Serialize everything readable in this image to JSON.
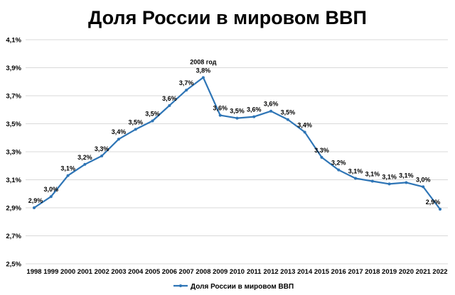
{
  "chart_data": {
    "type": "line",
    "title": "Доля России в мировом ВВП",
    "xlabel": "",
    "ylabel": "",
    "ylim": [
      2.5,
      4.1
    ],
    "yticks": [
      "2,5%",
      "2,7%",
      "2,9%",
      "3,1%",
      "3,3%",
      "3,5%",
      "3,7%",
      "3,9%",
      "4,1%"
    ],
    "grid": true,
    "legend_position": "bottom",
    "series_color": "#2E75B6",
    "series": [
      {
        "name": "Доля России в мировом ВВП",
        "x": [
          "1998",
          "1999",
          "2000",
          "2001",
          "2002",
          "2003",
          "2004",
          "2005",
          "2006",
          "2007",
          "2008",
          "2009",
          "2010",
          "2011",
          "2012",
          "2013",
          "2014",
          "2015",
          "2016",
          "2017",
          "2018",
          "2019",
          "2020",
          "2021",
          "2022"
        ],
        "values": [
          2.9,
          2.98,
          3.13,
          3.21,
          3.27,
          3.39,
          3.46,
          3.52,
          3.63,
          3.74,
          3.83,
          3.56,
          3.54,
          3.55,
          3.59,
          3.53,
          3.44,
          3.26,
          3.17,
          3.11,
          3.09,
          3.07,
          3.08,
          3.05,
          2.89
        ],
        "labels": [
          "2,9%",
          "3,0%",
          "3,1%",
          "3,2%",
          "3,3%",
          "3,4%",
          "3,5%",
          "3,5%",
          "3,6%",
          "3,7%",
          "3,8%",
          "3,6%",
          "3,5%",
          "3,6%",
          "3,6%",
          "3,5%",
          "3,4%",
          "3,3%",
          "3,2%",
          "3,1%",
          "3,1%",
          "3,1%",
          "3,1%",
          "3,0%",
          "2,9%"
        ]
      }
    ],
    "annotations": [
      {
        "x": "2008",
        "text": "2008 год"
      }
    ]
  }
}
